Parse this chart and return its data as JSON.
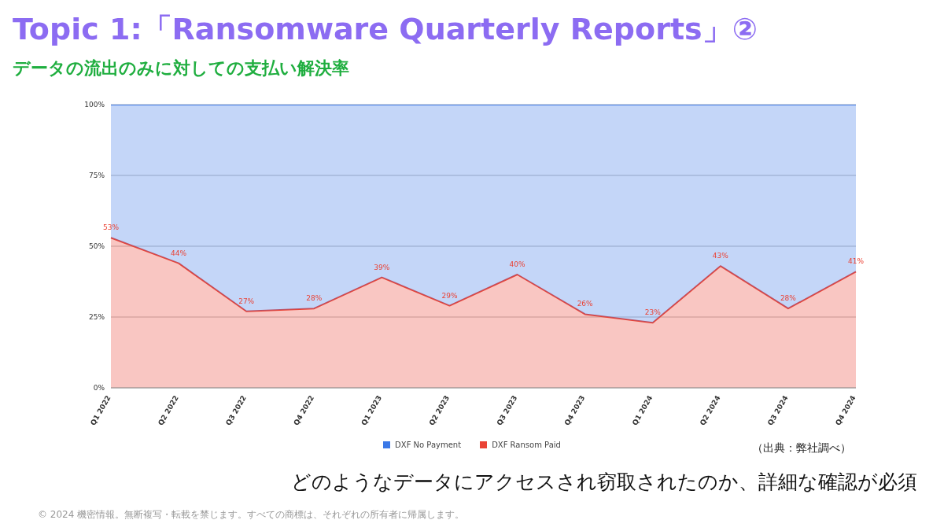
{
  "chart_data": {
    "type": "area",
    "title": "Topic 1:「Ransomware Quarterly Reports」②",
    "subtitle": "データの流出のみに対しての支払い解決率",
    "categories": [
      "Q1 2022",
      "Q2 2022",
      "Q3 2022",
      "Q4 2022",
      "Q1 2023",
      "Q2 2023",
      "Q3 2023",
      "Q4 2023",
      "Q1 2024",
      "Q2 2024",
      "Q3 2024",
      "Q4 2024"
    ],
    "series": [
      {
        "name": "DXF Ransom Paid",
        "color": "#ea4335",
        "values": [
          53,
          44,
          27,
          28,
          39,
          29,
          40,
          26,
          23,
          43,
          28,
          41
        ],
        "value_labels": [
          "53%",
          "44%",
          "27%",
          "28%",
          "39%",
          "29%",
          "40%",
          "26%",
          "23%",
          "43%",
          "28%",
          "41%"
        ]
      },
      {
        "name": "DXF No Payment",
        "color": "#3b78e7",
        "values": [
          47,
          56,
          73,
          72,
          61,
          71,
          60,
          74,
          77,
          57,
          72,
          59
        ]
      }
    ],
    "stacked": true,
    "ylim": [
      0,
      100
    ],
    "yticks": [
      {
        "value": 0,
        "label": "0%"
      },
      {
        "value": 25,
        "label": "25%"
      },
      {
        "value": 50,
        "label": "50%"
      },
      {
        "value": 75,
        "label": "75%"
      },
      {
        "value": 100,
        "label": "100%"
      }
    ],
    "grid": "y",
    "legend": "bottom",
    "annotations": [
      "（出典：弊社調べ）",
      "どのようなデータにアクセスされ窃取されたのか、詳細な確認が必須",
      "© 2024 機密情報。無断複写・転載を禁じます。すべての商標は、それぞれの所有者に帰属します。"
    ]
  }
}
